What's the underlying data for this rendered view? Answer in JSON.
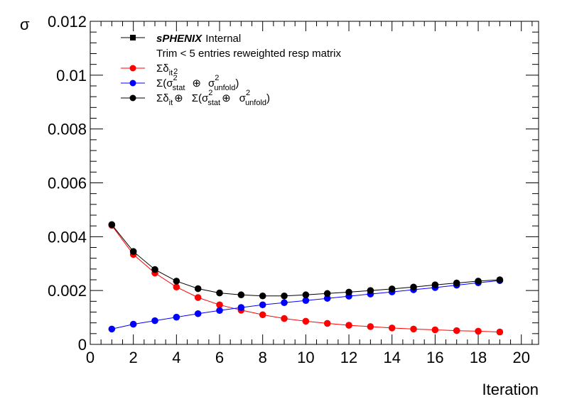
{
  "chart_data": {
    "type": "line",
    "xlabel": "Iteration",
    "ylabel": "σ",
    "xlim": [
      0,
      20.8
    ],
    "ylim": [
      0,
      0.012
    ],
    "x_ticks": [
      "0",
      "2",
      "4",
      "6",
      "8",
      "10",
      "12",
      "14",
      "16",
      "18",
      "20"
    ],
    "y_ticks": [
      "0",
      "0.002",
      "0.004",
      "0.006",
      "0.008",
      "0.01",
      "0.012"
    ],
    "grid": false,
    "legend_position": "top-left",
    "header": {
      "experiment": "sPHENIX",
      "status": "Internal",
      "note": "Trim < 5 entries reweighted resp matrix"
    },
    "legend_labels": {
      "iter_sum": "Σδ",
      "iter_sum_sub": "it",
      "iter_sum_extra": "2",
      "stat_open": "Σ(σ",
      "stat_sub": "stat",
      "oplus": "⊕",
      "sigma": "σ",
      "sup2": "2",
      "unfold_sub": "unfold",
      "close": ")",
      "total_prefix": "Σδ",
      "total_sub": "it"
    },
    "x": [
      1,
      2,
      3,
      4,
      5,
      6,
      7,
      8,
      9,
      10,
      11,
      12,
      13,
      14,
      15,
      16,
      17,
      18,
      19
    ],
    "series": [
      {
        "key": "iter",
        "color": "#ff0000",
        "values": [
          0.00442,
          0.00334,
          0.00265,
          0.00213,
          0.00174,
          0.00147,
          0.00127,
          0.0011,
          0.00096,
          0.00086,
          0.00078,
          0.00071,
          0.00066,
          0.00061,
          0.00057,
          0.00054,
          0.00051,
          0.00049,
          0.00046
        ]
      },
      {
        "key": "stat",
        "color": "#0000ff",
        "values": [
          0.00057,
          0.00075,
          0.00088,
          0.00101,
          0.00114,
          0.00126,
          0.00137,
          0.00147,
          0.00155,
          0.00163,
          0.00171,
          0.00179,
          0.00187,
          0.00195,
          0.00203,
          0.00211,
          0.0022,
          0.00229,
          0.00237
        ]
      },
      {
        "key": "total",
        "color": "#000000",
        "values": [
          0.00445,
          0.00345,
          0.00278,
          0.00235,
          0.00207,
          0.00191,
          0.00184,
          0.0018,
          0.0018,
          0.00184,
          0.00189,
          0.00194,
          0.002,
          0.00206,
          0.00213,
          0.00221,
          0.00228,
          0.00235,
          0.0024
        ]
      }
    ]
  }
}
